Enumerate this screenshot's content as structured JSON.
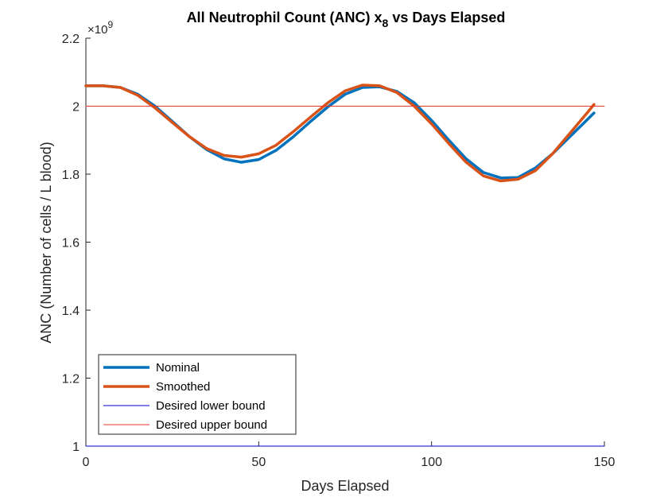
{
  "chart_data": {
    "type": "line",
    "title": "All Neutrophil Count (ANC) x",
    "title_subscript": "8",
    "title_suffix": " vs Days Elapsed",
    "xlabel": "Days Elapsed",
    "ylabel": "ANC (Number of cells / L blood)",
    "y_exponent_base": "×10",
    "y_exponent": "9",
    "xlim": [
      0,
      150
    ],
    "ylim": [
      1.0,
      2.2
    ],
    "y_scale_factor": 1000000000,
    "xticks": [
      0,
      50,
      100,
      150
    ],
    "xtick_labels": [
      "0",
      "50",
      "100",
      "150"
    ],
    "yticks": [
      1.0,
      1.2,
      1.4,
      1.6,
      1.8,
      2.0,
      2.2
    ],
    "ytick_labels": [
      "1",
      "1.2",
      "1.4",
      "1.6",
      "1.8",
      "2",
      "2.2"
    ],
    "grid": false,
    "legend_position": "bottom-left",
    "series": [
      {
        "name": "Nominal",
        "color": "#0072BD",
        "x": [
          0,
          5,
          10,
          15,
          20,
          25,
          30,
          35,
          40,
          45,
          50,
          55,
          60,
          65,
          70,
          75,
          80,
          85,
          90,
          95,
          100,
          105,
          110,
          115,
          120,
          125,
          130,
          135,
          140,
          145,
          147
        ],
        "y": [
          2.06,
          2.06,
          2.055,
          2.035,
          2.0,
          1.955,
          1.91,
          1.872,
          1.845,
          1.835,
          1.843,
          1.87,
          1.91,
          1.955,
          1.998,
          2.035,
          2.055,
          2.057,
          2.043,
          2.01,
          1.958,
          1.9,
          1.845,
          1.805,
          1.789,
          1.79,
          1.818,
          1.86,
          1.91,
          1.96,
          1.98
        ]
      },
      {
        "name": "Smoothed",
        "color": "#D95319",
        "x": [
          0,
          5,
          10,
          15,
          20,
          25,
          30,
          35,
          40,
          45,
          50,
          55,
          60,
          65,
          70,
          75,
          80,
          85,
          90,
          95,
          100,
          105,
          110,
          115,
          120,
          125,
          130,
          135,
          140,
          145,
          147
        ],
        "y": [
          2.06,
          2.06,
          2.055,
          2.032,
          1.995,
          1.952,
          1.91,
          1.875,
          1.855,
          1.85,
          1.86,
          1.885,
          1.925,
          1.968,
          2.01,
          2.045,
          2.062,
          2.06,
          2.04,
          2.0,
          1.948,
          1.89,
          1.835,
          1.795,
          1.78,
          1.785,
          1.81,
          1.86,
          1.92,
          1.98,
          2.005
        ]
      },
      {
        "name": "Desired lower bound",
        "color": "#0000C8",
        "x": [
          0,
          150
        ],
        "y": [
          1.0,
          1.0
        ]
      },
      {
        "name": "Desired upper bound",
        "color": "#E8372A",
        "x": [
          0,
          150
        ],
        "y": [
          2.0,
          2.0
        ]
      }
    ]
  }
}
